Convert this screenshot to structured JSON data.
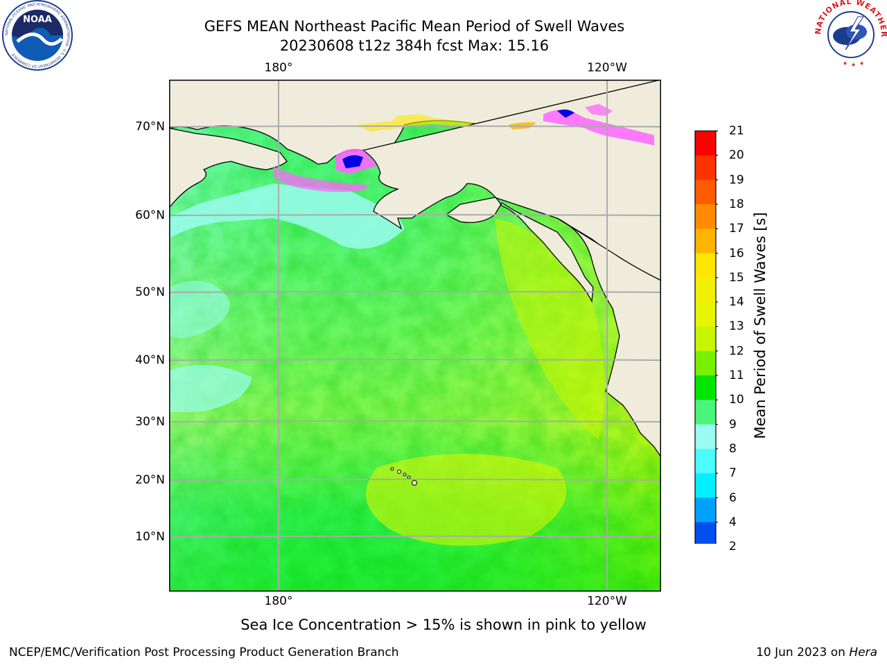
{
  "title": {
    "line1": "GEFS MEAN Northeast Pacific Mean Period of Swell Waves",
    "line2": "20230608 t12z 384h fcst   Max: 15.16"
  },
  "map": {
    "lon_labels_top": [
      "180°",
      "120°W"
    ],
    "lon_labels_bottom": [
      "180°",
      "120°W"
    ],
    "lat_labels": [
      "70°N",
      "60°N",
      "50°N",
      "40°N",
      "30°N",
      "20°N",
      "10°N"
    ]
  },
  "colorbar": {
    "label": "Mean Period of Swell Waves [s]",
    "ticks": [
      "21",
      "20",
      "19",
      "18",
      "17",
      "16",
      "15",
      "14",
      "13",
      "12",
      "11",
      "10",
      "9",
      "8",
      "7",
      "6",
      "4",
      "2"
    ],
    "colors": [
      "#ff0000",
      "#ff3300",
      "#ff5c00",
      "#ff8c00",
      "#ffb400",
      "#ffe600",
      "#f0f000",
      "#e6f500",
      "#c8f500",
      "#78f000",
      "#00e600",
      "#4af57a",
      "#9afcf0",
      "#4cfcfc",
      "#00f0ff",
      "#00a0ff",
      "#0050f0",
      "#0000e6"
    ]
  },
  "logos": {
    "noaa": "NOAA",
    "nws_ring": "NATIONAL WEATHER SERVICE",
    "noaa_ring": "NATIONAL OCEANIC AND ATMOSPHERIC ADMINISTRATION · U.S. DEPARTMENT OF COMMERCE"
  },
  "footer": {
    "ice_note": "Sea Ice Concentration > 15% is shown in pink to yellow",
    "branch": "NCEP/EMC/Verification Post Processing Product Generation Branch",
    "date_prefix": "10 Jun 2023 on ",
    "host": "Hera"
  }
}
